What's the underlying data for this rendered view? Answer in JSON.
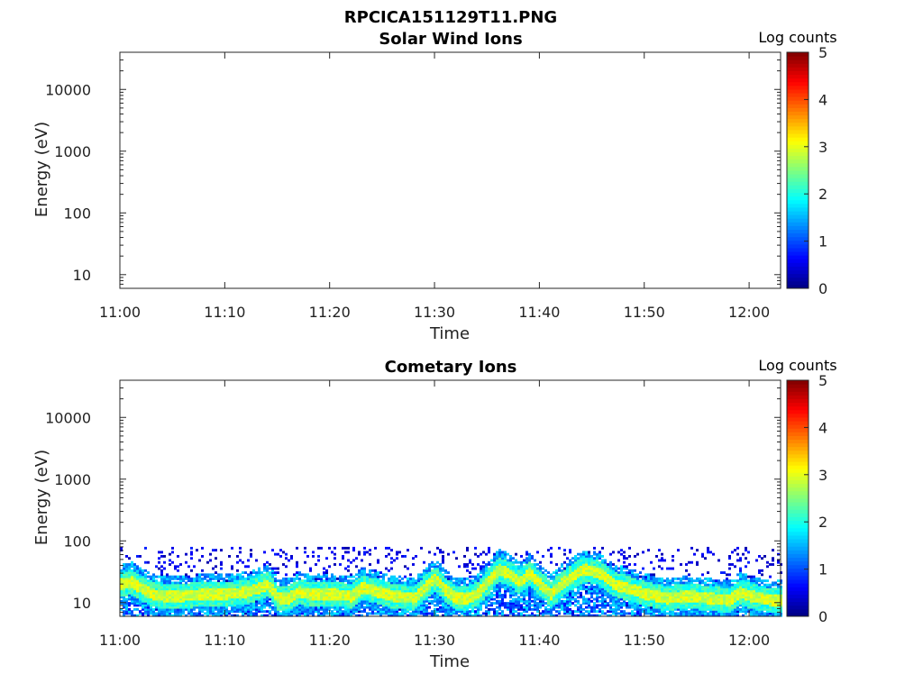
{
  "figure_title": "RPCICA151129T11.PNG",
  "colormap": [
    "#00007f",
    "#0000ff",
    "#007fff",
    "#00ffff",
    "#7fff7f",
    "#ffff00",
    "#ff7f00",
    "#ff0000",
    "#7f0000"
  ],
  "chart_data": [
    {
      "type": "heatmap",
      "title": "Solar Wind Ions",
      "xlabel": "Time",
      "ylabel": "Energy (eV)",
      "x_ticks": [
        "11:00",
        "11:10",
        "11:20",
        "11:30",
        "11:40",
        "11:50",
        "12:00"
      ],
      "x_tick_minutes": [
        0,
        10,
        20,
        30,
        40,
        50,
        60
      ],
      "xlim_minutes": [
        0,
        63
      ],
      "y_scale": "log",
      "y_ticks": [
        "10",
        "100",
        "1000",
        "10000"
      ],
      "y_tick_values": [
        10,
        100,
        1000,
        10000
      ],
      "ylim": [
        6,
        40000
      ],
      "colorbar": {
        "label": "Log counts",
        "range": [
          0,
          5
        ],
        "ticks": [
          "0",
          "1",
          "2",
          "3",
          "4",
          "5"
        ]
      },
      "data_present": false
    },
    {
      "type": "heatmap",
      "title": "Cometary Ions",
      "xlabel": "Time",
      "ylabel": "Energy (eV)",
      "x_ticks": [
        "11:00",
        "11:10",
        "11:20",
        "11:30",
        "11:40",
        "11:50",
        "12:00"
      ],
      "x_tick_minutes": [
        0,
        10,
        20,
        30,
        40,
        50,
        60
      ],
      "xlim_minutes": [
        0,
        63
      ],
      "y_scale": "log",
      "y_ticks": [
        "10",
        "100",
        "1000",
        "10000"
      ],
      "y_tick_values": [
        10,
        100,
        1000,
        10000
      ],
      "ylim": [
        6,
        40000
      ],
      "colorbar": {
        "label": "Log counts",
        "range": [
          0,
          5
        ],
        "ticks": [
          "0",
          "1",
          "2",
          "3",
          "4",
          "5"
        ]
      },
      "data_present": true,
      "band_peak_energy_ev": [
        {
          "t": 0,
          "e": 20
        },
        {
          "t": 1,
          "e": 22
        },
        {
          "t": 2,
          "e": 17
        },
        {
          "t": 3,
          "e": 14
        },
        {
          "t": 4,
          "e": 13
        },
        {
          "t": 6,
          "e": 13
        },
        {
          "t": 8,
          "e": 14
        },
        {
          "t": 10,
          "e": 14
        },
        {
          "t": 12,
          "e": 15
        },
        {
          "t": 14,
          "e": 20
        },
        {
          "t": 15,
          "e": 12
        },
        {
          "t": 16,
          "e": 12
        },
        {
          "t": 17,
          "e": 15
        },
        {
          "t": 18,
          "e": 14
        },
        {
          "t": 20,
          "e": 14
        },
        {
          "t": 22,
          "e": 13
        },
        {
          "t": 23,
          "e": 18
        },
        {
          "t": 24,
          "e": 16
        },
        {
          "t": 26,
          "e": 13
        },
        {
          "t": 28,
          "e": 12
        },
        {
          "t": 29,
          "e": 18
        },
        {
          "t": 30,
          "e": 25
        },
        {
          "t": 31,
          "e": 16
        },
        {
          "t": 32,
          "e": 12
        },
        {
          "t": 33,
          "e": 12
        },
        {
          "t": 34,
          "e": 14
        },
        {
          "t": 35,
          "e": 22
        },
        {
          "t": 36,
          "e": 35
        },
        {
          "t": 37,
          "e": 30
        },
        {
          "t": 38,
          "e": 22
        },
        {
          "t": 39,
          "e": 30
        },
        {
          "t": 40,
          "e": 20
        },
        {
          "t": 41,
          "e": 14
        },
        {
          "t": 42,
          "e": 20
        },
        {
          "t": 43,
          "e": 26
        },
        {
          "t": 44,
          "e": 35
        },
        {
          "t": 45,
          "e": 33
        },
        {
          "t": 46,
          "e": 28
        },
        {
          "t": 47,
          "e": 20
        },
        {
          "t": 48,
          "e": 18
        },
        {
          "t": 49,
          "e": 16
        },
        {
          "t": 50,
          "e": 14
        },
        {
          "t": 52,
          "e": 12
        },
        {
          "t": 54,
          "e": 13
        },
        {
          "t": 56,
          "e": 12
        },
        {
          "t": 58,
          "e": 11
        },
        {
          "t": 59,
          "e": 15
        },
        {
          "t": 60,
          "e": 13
        },
        {
          "t": 61,
          "e": 12
        },
        {
          "t": 62,
          "e": 11
        },
        {
          "t": 63,
          "e": 11
        }
      ],
      "noise_upper_energy_ev": 80,
      "min_energy_ev": 6
    }
  ]
}
